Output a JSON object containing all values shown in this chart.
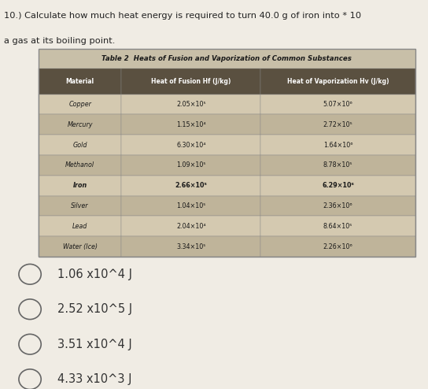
{
  "title_question": "10.) Calculate how much heat energy is required to turn 40.0 g of iron into * 10",
  "title_line2": "a gas at its boiling point.",
  "table_title": "Table 2  Heats of Fusion and Vaporization of Common Substances",
  "header_labels": [
    "Material",
    "Heat of Fusion Hf (J/kg)",
    "Heat of Vaporization Hv (J/kg)"
  ],
  "rows": [
    [
      "Copper",
      "2.05x10^5",
      "5.07x10^6"
    ],
    [
      "Mercury",
      "1.15x10^4",
      "2.72x10^5"
    ],
    [
      "Gold",
      "6.30x10^4",
      "1.64x10^6"
    ],
    [
      "Methanol",
      "1.09x10^5",
      "8.78x10^5"
    ],
    [
      "Iron",
      "2.66x10^5",
      "6.29x10^6"
    ],
    [
      "Silver",
      "1.04x10^5",
      "2.36x10^6"
    ],
    [
      "Lead",
      "2.04x10^4",
      "8.64x10^5"
    ],
    [
      "Water (Ice)",
      "3.34x10^5",
      "2.26x10^6"
    ]
  ],
  "options": [
    "1.06 x10^4 J",
    "2.52 x10^5 J",
    "3.51 x10^4 J",
    "4.33 x10^3 J"
  ],
  "table_title_bg": "#c8bfa8",
  "header_bg": "#5a5040",
  "header_text": "#ffffff",
  "row_even_bg": "#d4c9b0",
  "row_odd_bg": "#bfb49a",
  "title_color": "#222222",
  "option_color": "#333333",
  "page_bg": "#f0ece4",
  "table_border": "#888888"
}
